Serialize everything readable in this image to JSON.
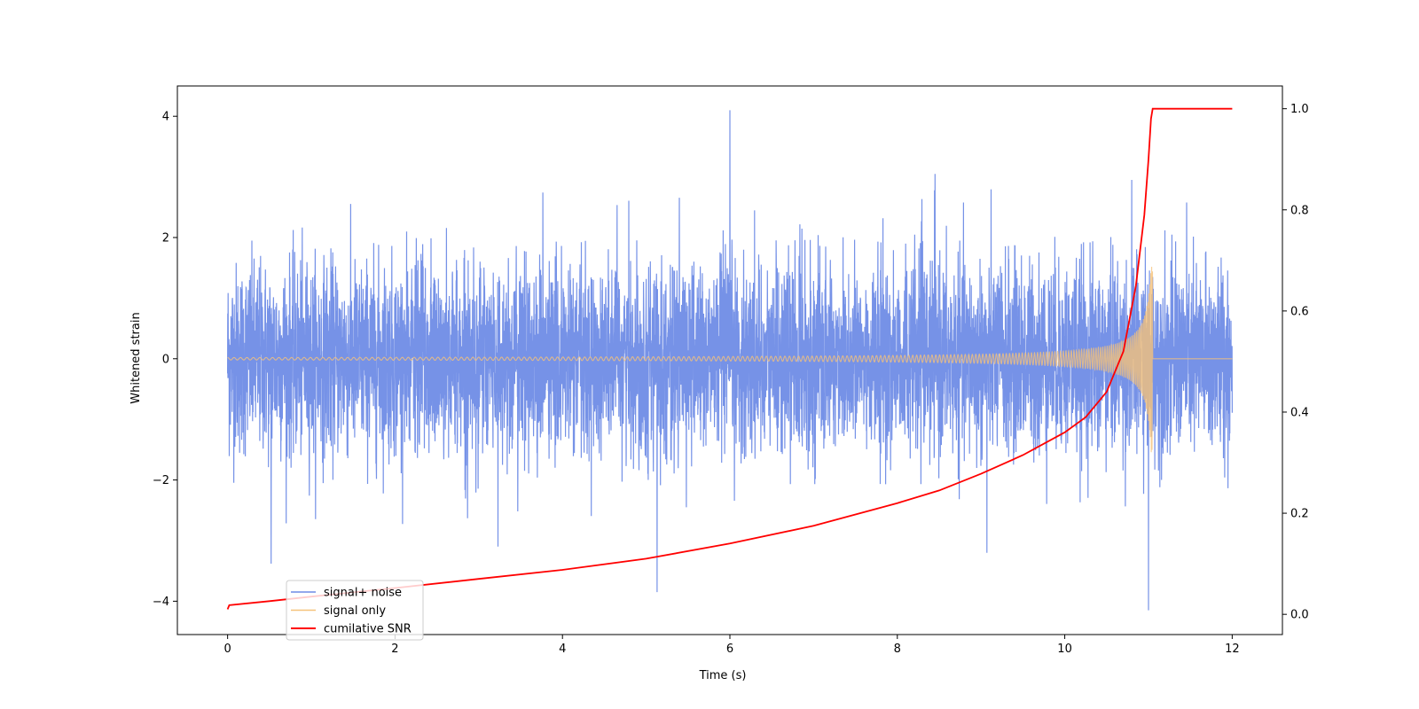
{
  "chart_data": {
    "type": "line",
    "xlabel": "Time (s)",
    "ylabel_left": "Whitened strain",
    "ylabel_right": "",
    "xlim": [
      -0.6,
      12.6
    ],
    "ylim_left": [
      -4.55,
      4.5
    ],
    "ylim_right": [
      -0.04,
      1.045
    ],
    "x_ticks": [
      0,
      2,
      4,
      6,
      8,
      10,
      12
    ],
    "y_ticks_left": [
      -4,
      -2,
      0,
      2,
      4
    ],
    "y_ticks_right": [
      0.0,
      0.2,
      0.4,
      0.6,
      0.8,
      1.0
    ],
    "x_tick_labels": [
      "0",
      "2",
      "4",
      "6",
      "8",
      "10",
      "12"
    ],
    "y_tick_labels_left": [
      "−4",
      "−2",
      "0",
      "2",
      "4"
    ],
    "y_tick_labels_right": [
      "0.0",
      "0.2",
      "0.4",
      "0.6",
      "0.8",
      "1.0"
    ],
    "grid": false,
    "legend_position": "lower-left",
    "series": [
      {
        "name": "signal+ noise",
        "axis": "left",
        "color": "#6f8ce6",
        "description_type": "noise",
        "t_range": [
          0,
          12
        ],
        "std": 0.78,
        "extremes": [
          {
            "t": 6.0,
            "y": 4.1
          },
          {
            "t": 11.0,
            "y": -4.15
          },
          {
            "t": 5.13,
            "y": -3.85
          },
          {
            "t": 0.52,
            "y": -3.38
          },
          {
            "t": 3.23,
            "y": -3.1
          },
          {
            "t": 8.45,
            "y": 3.05
          },
          {
            "t": 9.07,
            "y": -3.2
          },
          {
            "t": 10.8,
            "y": 2.95
          }
        ]
      },
      {
        "name": "signal only",
        "axis": "left",
        "color": "#f5c27a",
        "description_type": "chirp",
        "t_start": 0,
        "t_merge": 11.05,
        "t_end": 12,
        "peak_amplitude": 1.55,
        "start_amplitude": 0.02
      },
      {
        "name": "cumilative SNR",
        "axis": "right",
        "color": "#ff0000",
        "points": [
          [
            0,
            0.01
          ],
          [
            0.02,
            0.018
          ],
          [
            0.5,
            0.026
          ],
          [
            1,
            0.035
          ],
          [
            2,
            0.052
          ],
          [
            3,
            0.07
          ],
          [
            4,
            0.088
          ],
          [
            5,
            0.11
          ],
          [
            6,
            0.14
          ],
          [
            7,
            0.175
          ],
          [
            8,
            0.22
          ],
          [
            8.5,
            0.245
          ],
          [
            9,
            0.278
          ],
          [
            9.5,
            0.315
          ],
          [
            10,
            0.36
          ],
          [
            10.25,
            0.39
          ],
          [
            10.5,
            0.44
          ],
          [
            10.7,
            0.52
          ],
          [
            10.85,
            0.65
          ],
          [
            10.95,
            0.79
          ],
          [
            11.0,
            0.9
          ],
          [
            11.03,
            0.98
          ],
          [
            11.05,
            1.0
          ],
          [
            12,
            1.0
          ]
        ]
      }
    ]
  }
}
